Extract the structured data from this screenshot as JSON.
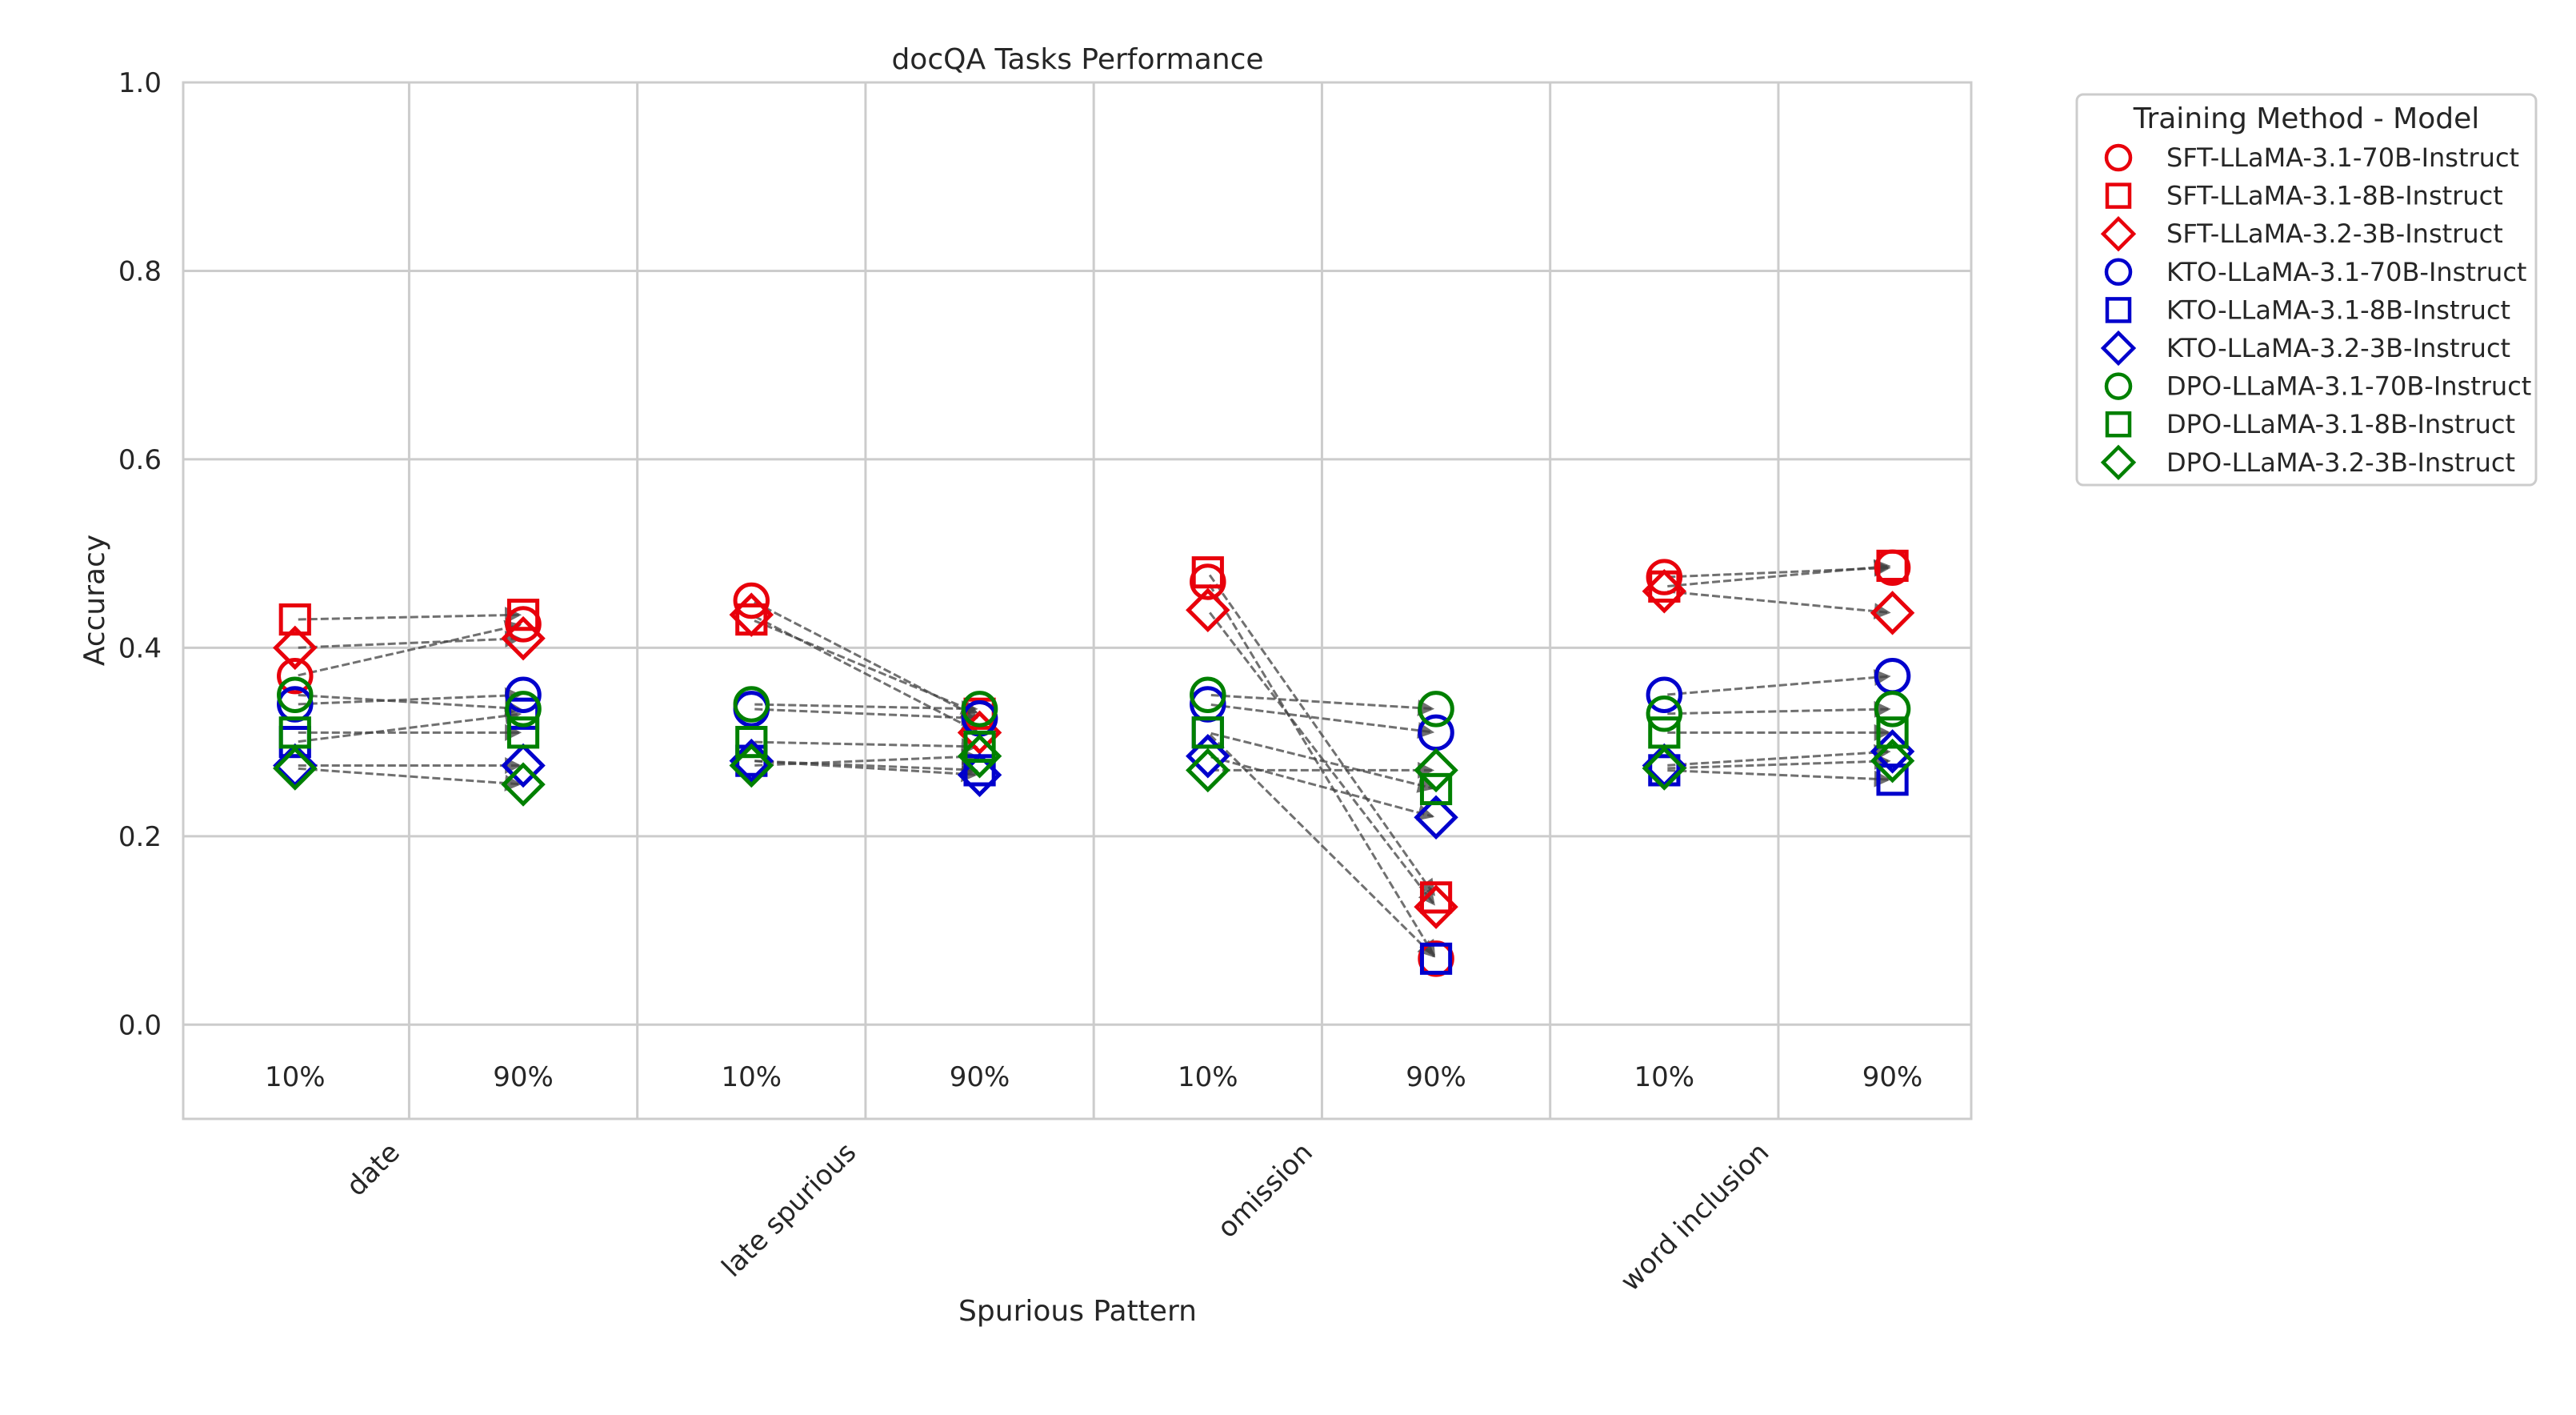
{
  "chart_data": {
    "type": "scatter",
    "title": "docQA Tasks Performance",
    "xlabel": "Spurious Pattern",
    "ylabel": "Accuracy",
    "ylim": [
      -0.1,
      1.0
    ],
    "yticks": [
      "0.0",
      "0.2",
      "0.4",
      "0.6",
      "0.8",
      "1.0"
    ],
    "ytick_values": [
      0.0,
      0.2,
      0.4,
      0.6,
      0.8,
      1.0
    ],
    "grid": true,
    "legend_placement": "outside-top-right",
    "legend_title": "Training Method - Model",
    "levels": [
      "10%",
      "90%"
    ],
    "categories": [
      "date",
      "late spurious",
      "omission",
      "word inclusion"
    ],
    "colors": {
      "SFT": "#e8000b",
      "KTO": "#0000cc",
      "DPO": "#008000",
      "arrow": "#404040"
    },
    "series": [
      {
        "name": "SFT-LLaMA-3.1-70B-Instruct",
        "method": "SFT",
        "marker": "circle",
        "values": [
          [
            0.37,
            0.425
          ],
          [
            0.45,
            0.325
          ],
          [
            0.47,
            0.07
          ],
          [
            0.475,
            0.485
          ]
        ]
      },
      {
        "name": "SFT-LLaMA-3.1-8B-Instruct",
        "method": "SFT",
        "marker": "square",
        "values": [
          [
            0.43,
            0.435
          ],
          [
            0.43,
            0.33
          ],
          [
            0.48,
            0.135
          ],
          [
            0.465,
            0.487
          ]
        ]
      },
      {
        "name": "SFT-LLaMA-3.2-3B-Instruct",
        "method": "SFT",
        "marker": "diamond",
        "values": [
          [
            0.4,
            0.41
          ],
          [
            0.435,
            0.31
          ],
          [
            0.44,
            0.125
          ],
          [
            0.46,
            0.437
          ]
        ]
      },
      {
        "name": "KTO-LLaMA-3.1-70B-Instruct",
        "method": "KTO",
        "marker": "circle",
        "values": [
          [
            0.34,
            0.35
          ],
          [
            0.335,
            0.325
          ],
          [
            0.34,
            0.31
          ],
          [
            0.35,
            0.37
          ]
        ]
      },
      {
        "name": "KTO-LLaMA-3.1-8B-Instruct",
        "method": "KTO",
        "marker": "square",
        "values": [
          [
            0.3,
            0.33
          ],
          [
            0.28,
            0.27
          ],
          [
            0.31,
            0.07
          ],
          [
            0.27,
            0.26
          ]
        ]
      },
      {
        "name": "KTO-LLaMA-3.2-3B-Instruct",
        "method": "KTO",
        "marker": "diamond",
        "values": [
          [
            0.275,
            0.275
          ],
          [
            0.28,
            0.265
          ],
          [
            0.285,
            0.22
          ],
          [
            0.275,
            0.29
          ]
        ]
      },
      {
        "name": "DPO-LLaMA-3.1-70B-Instruct",
        "method": "DPO",
        "marker": "circle",
        "values": [
          [
            0.35,
            0.335
          ],
          [
            0.34,
            0.335
          ],
          [
            0.35,
            0.335
          ],
          [
            0.33,
            0.335
          ]
        ]
      },
      {
        "name": "DPO-LLaMA-3.1-8B-Instruct",
        "method": "DPO",
        "marker": "square",
        "values": [
          [
            0.31,
            0.31
          ],
          [
            0.3,
            0.295
          ],
          [
            0.31,
            0.25
          ],
          [
            0.31,
            0.31
          ]
        ]
      },
      {
        "name": "DPO-LLaMA-3.2-3B-Instruct",
        "method": "DPO",
        "marker": "diamond",
        "values": [
          [
            0.272,
            0.255
          ],
          [
            0.275,
            0.285
          ],
          [
            0.27,
            0.27
          ],
          [
            0.272,
            0.28
          ]
        ]
      }
    ]
  }
}
